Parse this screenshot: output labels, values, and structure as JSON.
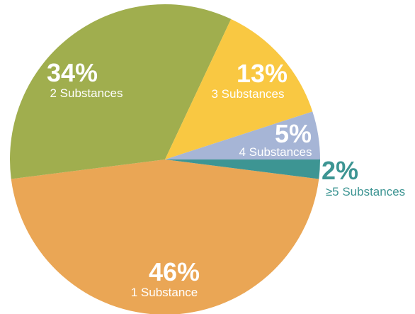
{
  "chart_data": {
    "type": "pie",
    "title": "",
    "slices": [
      {
        "percent_label": "46%",
        "label": "1 Substance",
        "value": 46,
        "color": "#EAA655",
        "label_color": "#ffffff"
      },
      {
        "percent_label": "34%",
        "label": "2 Substances",
        "value": 34,
        "color": "#A0AE4E",
        "label_color": "#ffffff"
      },
      {
        "percent_label": "13%",
        "label": "3 Substances",
        "value": 13,
        "color": "#F9C842",
        "label_color": "#ffffff"
      },
      {
        "percent_label": "5%",
        "label": "4 Substances",
        "value": 5,
        "color": "#A6B5D6",
        "label_color": "#ffffff"
      },
      {
        "percent_label": "2%",
        "label": "≥5 Substances",
        "value": 2,
        "color": "#3D9593",
        "label_color": "#3D9593"
      }
    ]
  }
}
